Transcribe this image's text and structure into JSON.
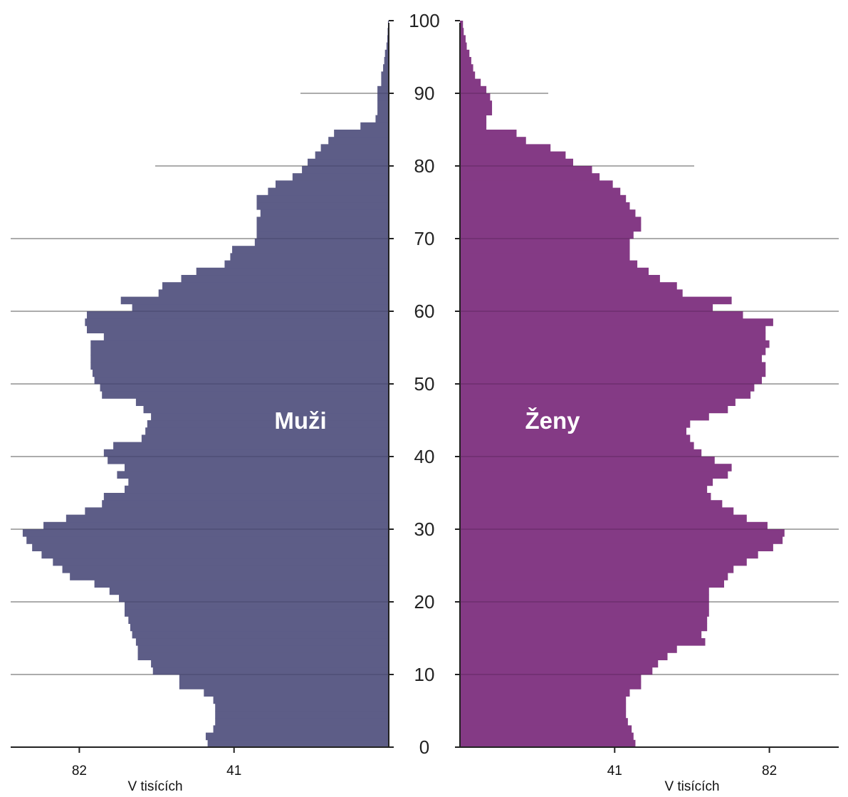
{
  "chart_data": {
    "type": "population-pyramid",
    "ylim": [
      0,
      100
    ],
    "y_ticks": [
      0,
      10,
      20,
      30,
      40,
      50,
      60,
      70,
      80,
      90,
      100
    ],
    "x_unit_label": "V tisících",
    "left_ticks": [
      82,
      41
    ],
    "right_ticks": [
      41,
      82
    ],
    "xlim": [
      0,
      100
    ],
    "colors": {
      "males": "#5d5d87",
      "females": "#843a85",
      "grid": "#7a7a7a"
    },
    "series": [
      {
        "name": "Muži",
        "side": "left",
        "values": [
          48,
          48.5,
          46.5,
          46,
          46,
          46,
          46.5,
          49,
          55.5,
          55.5,
          62.5,
          63,
          66.5,
          66.5,
          67,
          68,
          68.5,
          69,
          70,
          70,
          71.5,
          74,
          78,
          84.5,
          86.5,
          89,
          92,
          94.5,
          96,
          97,
          91.5,
          85.5,
          80.5,
          76,
          75.5,
          70,
          69,
          72,
          70,
          74.5,
          75.5,
          73,
          65.5,
          64.5,
          64,
          63,
          65,
          67,
          76,
          76.5,
          78,
          78.5,
          79,
          79,
          79,
          79,
          75.5,
          80,
          80.5,
          80,
          68,
          71,
          61,
          60,
          55,
          51,
          43.5,
          42,
          41.5,
          35.5,
          35,
          35,
          35,
          34,
          35,
          35,
          32,
          30,
          25.5,
          23,
          21.5,
          19.5,
          18,
          16,
          14.5,
          7.5,
          3.5,
          3,
          3,
          3,
          3,
          2,
          2,
          1.5,
          1.2,
          1,
          0.6,
          0.4,
          0.3,
          0.2,
          0
        ]
      },
      {
        "name": "Ženy",
        "side": "right",
        "values": [
          46.5,
          46,
          45.5,
          44.5,
          44,
          44,
          44,
          45,
          48,
          48,
          51,
          52.5,
          55,
          57.5,
          65,
          64,
          65.5,
          65.5,
          66,
          66,
          66,
          66,
          70,
          71,
          72.5,
          76,
          79,
          83,
          85.5,
          86,
          81.5,
          76,
          72.5,
          69.5,
          66.5,
          65.5,
          67,
          71,
          72,
          67.5,
          64,
          62,
          61,
          60,
          61,
          66,
          71,
          73,
          77,
          78,
          80,
          81,
          81,
          80,
          81,
          82,
          81,
          81,
          83,
          75,
          67,
          72,
          59,
          57.5,
          53,
          50,
          47,
          45,
          45,
          45,
          46,
          48,
          48,
          46.5,
          45,
          44,
          42.5,
          40.5,
          37,
          35,
          30,
          28,
          24,
          17.5,
          15,
          7,
          7,
          8.5,
          8.5,
          8,
          7,
          5.5,
          4,
          3.5,
          3,
          2.5,
          1.8,
          1.5,
          1,
          0.8,
          0
        ]
      }
    ]
  }
}
